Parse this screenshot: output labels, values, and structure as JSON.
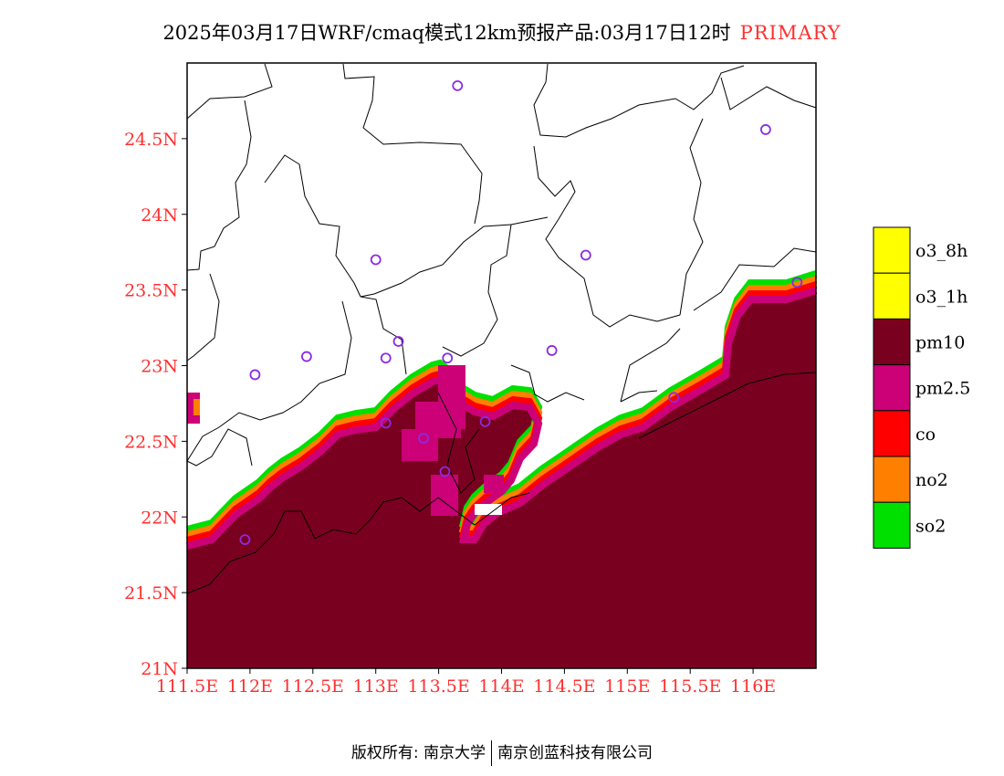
{
  "header": {
    "title": "2025年03月17日WRF/cmaq模式12km预报产品:03月17日12时",
    "tag": "PRIMARY"
  },
  "axes": {
    "x_ticks": [
      "111.5E",
      "112E",
      "112.5E",
      "113E",
      "113.5E",
      "114E",
      "114.5E",
      "115E",
      "115.5E",
      "116E"
    ],
    "y_ticks": [
      "24.5N",
      "24N",
      "23.5N",
      "23N",
      "22.5N",
      "22N",
      "21.5N",
      "21N"
    ]
  },
  "legend": {
    "items": [
      {
        "label": "o3_8h",
        "color": "#ffff00"
      },
      {
        "label": "o3_1h",
        "color": "#ffff00"
      },
      {
        "label": "pm10",
        "color": "#7a0020"
      },
      {
        "label": "pm2.5",
        "color": "#cc0077"
      },
      {
        "label": "co",
        "color": "#ff0000"
      },
      {
        "label": "no2",
        "color": "#ff7f00"
      },
      {
        "label": "so2",
        "color": "#00e000"
      }
    ]
  },
  "map": {
    "lon_range": [
      111.5,
      116.5
    ],
    "lat_range": [
      21.0,
      25.0
    ],
    "sea_color": "#7a0020",
    "stations": [
      {
        "lon": 113.65,
        "lat": 24.85
      },
      {
        "lon": 116.1,
        "lat": 24.56
      },
      {
        "lon": 113.0,
        "lat": 23.7
      },
      {
        "lon": 114.67,
        "lat": 23.73
      },
      {
        "lon": 116.35,
        "lat": 23.55
      },
      {
        "lon": 112.45,
        "lat": 23.06
      },
      {
        "lon": 113.18,
        "lat": 23.16
      },
      {
        "lon": 113.08,
        "lat": 23.05
      },
      {
        "lon": 113.57,
        "lat": 23.05
      },
      {
        "lon": 114.4,
        "lat": 23.1
      },
      {
        "lon": 112.04,
        "lat": 22.94
      },
      {
        "lon": 115.37,
        "lat": 22.79
      },
      {
        "lon": 113.08,
        "lat": 22.62
      },
      {
        "lon": 113.87,
        "lat": 22.63
      },
      {
        "lon": 113.38,
        "lat": 22.52
      },
      {
        "lon": 113.55,
        "lat": 22.3
      },
      {
        "lon": 111.96,
        "lat": 21.85
      }
    ]
  },
  "footer": {
    "left": "版权所有: 南京大学",
    "right": "南京创蓝科技有限公司"
  }
}
